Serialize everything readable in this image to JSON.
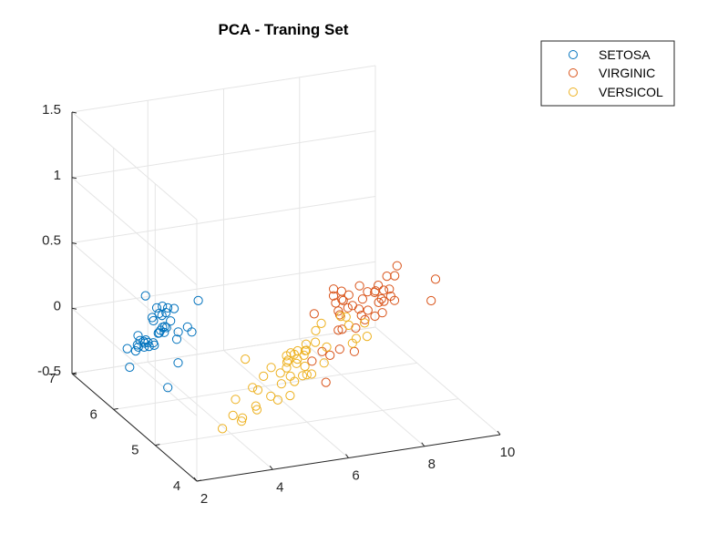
{
  "chart_data": {
    "type": "scatter",
    "title": "PCA - Traning Set",
    "xlabel": "",
    "ylabel": "",
    "zlabel": "",
    "grid": true,
    "legend_position": "top-right",
    "x_ticks": [
      "2",
      "4",
      "6",
      "8",
      "10"
    ],
    "y_ticks": [
      "4",
      "5",
      "6",
      "7"
    ],
    "z_ticks": [
      "-0.5",
      "0",
      "0.5",
      "1",
      "1.5"
    ],
    "series": [
      {
        "name": "SETOSA",
        "color": "#0072BD",
        "points": [
          [
            1.87,
            4.33,
            0.32
          ],
          [
            2.3,
            4.72,
            0.43
          ],
          [
            1.83,
            5.25,
            0.19
          ],
          [
            1.96,
            5.23,
            0.19
          ],
          [
            2.29,
            4.96,
            -0.06
          ],
          [
            2.12,
            5.78,
            0.02
          ],
          [
            2.41,
            5.74,
            0.08
          ],
          [
            2.6,
            5.45,
            0.21
          ],
          [
            2.69,
            5.11,
            0.25
          ],
          [
            2.69,
            5.41,
            0.22
          ],
          [
            2.57,
            5.8,
            0.05
          ],
          [
            2.71,
            5.67,
            0.05
          ],
          [
            2.75,
            5.73,
            0.05
          ],
          [
            3.0,
            5.64,
            0.18
          ],
          [
            3.18,
            5.3,
            0.27
          ],
          [
            3.25,
            5.26,
            0.24
          ],
          [
            3.19,
            5.63,
            0.32
          ],
          [
            3.53,
            5.36,
            0.44
          ],
          [
            3.23,
            5.89,
            0.11
          ],
          [
            3.42,
            6.22,
            -0.04
          ],
          [
            3.28,
            6.24,
            0.08
          ],
          [
            3.5,
            6.33,
            0.12
          ],
          [
            3.81,
            6.28,
            0.02
          ],
          [
            3.78,
            6.32,
            0.11
          ],
          [
            3.4,
            6.53,
            -0.2
          ],
          [
            3.52,
            6.53,
            -0.23
          ],
          [
            3.54,
            6.63,
            -0.21
          ],
          [
            3.78,
            6.53,
            0.01
          ],
          [
            3.84,
            6.5,
            -0.09
          ],
          [
            3.39,
            6.88,
            -0.48
          ],
          [
            3.47,
            6.81,
            -0.34
          ],
          [
            3.73,
            6.75,
            -0.27
          ],
          [
            3.95,
            6.65,
            -0.16
          ],
          [
            3.72,
            6.98,
            -0.28
          ],
          [
            3.77,
            7.04,
            -0.37
          ],
          [
            4.16,
            6.71,
            -0.05
          ],
          [
            4.11,
            6.75,
            -0.01
          ],
          [
            4.07,
            7.12,
            -0.03
          ],
          [
            2.92,
            5.88,
            0.17
          ],
          [
            3.01,
            5.76,
            0.24
          ]
        ]
      },
      {
        "name": "VIRGINIC",
        "color": "#D95319",
        "points": [
          [
            7.52,
            4.28,
            0.56
          ],
          [
            7.69,
            4.43,
            0.7
          ],
          [
            7.57,
            4.51,
            0.68
          ],
          [
            7.73,
            4.41,
            0.78
          ],
          [
            8.3,
            4.11,
            0.57
          ],
          [
            8.48,
            4.17,
            0.71
          ],
          [
            7.48,
            4.7,
            0.52
          ],
          [
            7.65,
            4.79,
            0.53
          ],
          [
            7.41,
            4.89,
            0.25
          ],
          [
            7.45,
            5.07,
            0.28
          ],
          [
            7.8,
            4.66,
            0.53
          ],
          [
            7.62,
            5.01,
            0.28
          ],
          [
            7.72,
            5.11,
            0.39
          ],
          [
            7.76,
            5.34,
            0.37
          ],
          [
            8.09,
            4.89,
            0.4
          ],
          [
            7.52,
            5.38,
            0.3
          ],
          [
            7.77,
            5.44,
            0.02
          ],
          [
            7.96,
            5.45,
            0.23
          ],
          [
            8.22,
            5.23,
            0.28
          ],
          [
            8.19,
            5.15,
            0.37
          ],
          [
            8.2,
            5.28,
            0.24
          ],
          [
            8.27,
            5.44,
            0.27
          ],
          [
            8.35,
            5.29,
            0.24
          ],
          [
            7.45,
            5.53,
            0.11
          ],
          [
            7.46,
            5.64,
            0.17
          ],
          [
            7.59,
            5.61,
            0.2
          ],
          [
            7.31,
            6.02,
            -0.01
          ],
          [
            7.63,
            5.73,
            -0.07
          ],
          [
            7.65,
            5.75,
            0.07
          ],
          [
            7.7,
            5.91,
            0.14
          ],
          [
            7.88,
            5.73,
            0.09
          ],
          [
            7.81,
            6.01,
            0.16
          ],
          [
            8.0,
            5.95,
            0.08
          ],
          [
            8.0,
            5.99,
            0.14
          ],
          [
            8.18,
            5.89,
            0.05
          ],
          [
            8.26,
            5.75,
            0.01
          ],
          [
            8.56,
            5.52,
            0.08
          ],
          [
            8.54,
            5.68,
            0.01
          ],
          [
            7.64,
            5.94,
            -0.32
          ],
          [
            7.63,
            6.12,
            -0.34
          ],
          [
            7.84,
            5.83,
            -0.1
          ],
          [
            8.25,
            5.91,
            -0.31
          ],
          [
            8.05,
            6.08,
            -0.33
          ],
          [
            7.56,
            6.3,
            -0.46
          ],
          [
            8.07,
            6.43,
            -0.68
          ]
        ]
      },
      {
        "name": "VERSICOL",
        "color": "#EDB120",
        "points": [
          [
            6.21,
            4.25,
            0.5
          ],
          [
            6.31,
            4.47,
            0.44
          ],
          [
            6.74,
            4.29,
            0.42
          ],
          [
            6.6,
            4.54,
            0.34
          ],
          [
            6.27,
            4.9,
            0.27
          ],
          [
            6.86,
            4.6,
            0.21
          ],
          [
            7.06,
            4.52,
            0.24
          ],
          [
            6.96,
            4.78,
            0.12
          ],
          [
            5.66,
            5.18,
            -0.12
          ],
          [
            6.0,
            5.25,
            -0.12
          ],
          [
            6.12,
            5.15,
            0.0
          ],
          [
            6.05,
            5.35,
            -0.08
          ],
          [
            6.03,
            5.48,
            -0.16
          ],
          [
            6.08,
            5.46,
            -0.1
          ],
          [
            6.09,
            5.56,
            -0.2
          ],
          [
            6.2,
            5.41,
            -0.14
          ],
          [
            6.25,
            5.45,
            -0.09
          ],
          [
            6.34,
            5.33,
            -0.01
          ],
          [
            6.43,
            5.18,
            0.13
          ],
          [
            6.53,
            5.28,
            0.01
          ],
          [
            6.11,
            5.59,
            -0.16
          ],
          [
            6.49,
            5.46,
            -0.1
          ],
          [
            6.58,
            5.6,
            -0.18
          ],
          [
            6.86,
            5.31,
            -0.05
          ],
          [
            6.97,
            5.47,
            -0.22
          ],
          [
            5.44,
            5.97,
            -0.26
          ],
          [
            5.81,
            5.87,
            -0.38
          ],
          [
            5.87,
            5.74,
            -0.28
          ],
          [
            6.1,
            5.73,
            -0.33
          ],
          [
            6.31,
            5.68,
            -0.35
          ],
          [
            6.54,
            5.79,
            -0.43
          ],
          [
            6.6,
            5.65,
            -0.35
          ],
          [
            6.79,
            5.72,
            -0.37
          ],
          [
            6.79,
            5.77,
            -0.32
          ],
          [
            6.98,
            5.78,
            -0.39
          ],
          [
            5.5,
            6.26,
            -0.65
          ],
          [
            5.85,
            6.17,
            -0.55
          ],
          [
            6.46,
            6.03,
            -0.51
          ],
          [
            6.72,
            6.06,
            -0.62
          ],
          [
            6.44,
            6.27,
            -0.67
          ],
          [
            6.67,
            6.31,
            -0.72
          ],
          [
            6.09,
            6.63,
            -0.92
          ],
          [
            6.46,
            6.62,
            -0.87
          ],
          [
            6.08,
            6.85,
            -0.96
          ],
          [
            6.36,
            6.9,
            -1.03
          ],
          [
            6.01,
            7.04,
            -1.11
          ],
          [
            6.53,
            6.71,
            -0.87
          ],
          [
            6.21,
            6.37,
            -0.64
          ]
        ]
      }
    ]
  }
}
